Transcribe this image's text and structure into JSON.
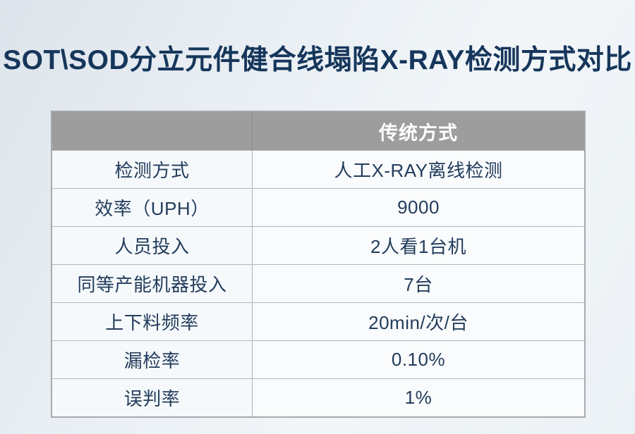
{
  "page": {
    "title": "SOT\\SOD分立元件健合线塌陷X-RAY检测方式对比"
  },
  "chart_data": {
    "type": "table",
    "title": "SOT\\SOD分立元件健合线塌陷X-RAY检测方式对比",
    "columns": [
      "",
      "传统方式"
    ],
    "rows": [
      [
        "检测方式",
        "人工X-RAY离线检测"
      ],
      [
        "效率（UPH）",
        "9000"
      ],
      [
        "人员投入",
        "2人看1台机"
      ],
      [
        "同等产能机器投入",
        "7台"
      ],
      [
        "上下料频率",
        "20min/次/台"
      ],
      [
        "漏检率",
        "0.10%"
      ],
      [
        "误判率",
        "1%"
      ]
    ],
    "layout": {
      "header_row": true,
      "first_header_cell_empty": true,
      "column_count": 2,
      "row_count": 8
    }
  },
  "colors": {
    "title_text": "#16365b",
    "header_bg": "#9d9d9d",
    "header_text": "#ffffff",
    "cell_text": "#223c5c",
    "cell_bg": "#f6f9fb",
    "outer_border": "#a6aaae",
    "inner_border": "#b2b7bb",
    "page_bg_gradient_start": "#dde4eb",
    "page_bg_gradient_end": "#f2f6f9"
  }
}
